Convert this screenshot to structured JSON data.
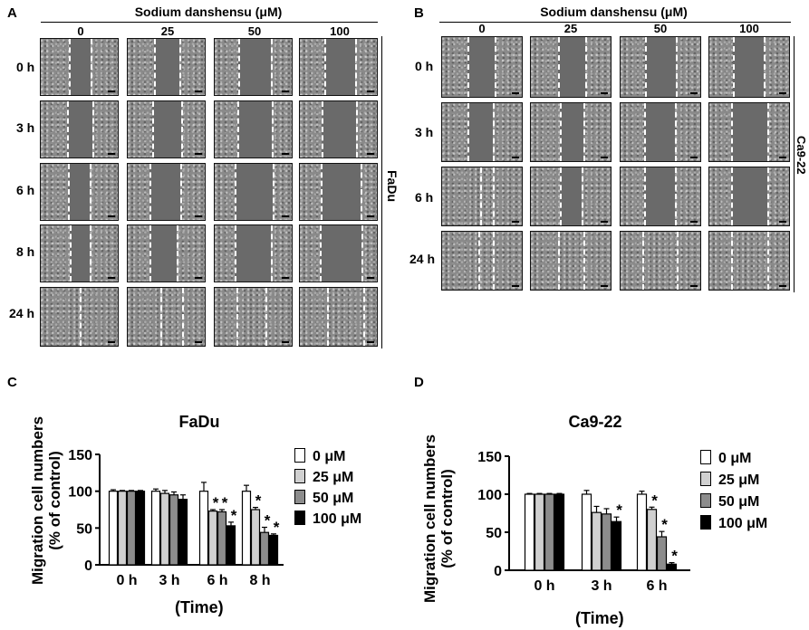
{
  "panels": {
    "A": "A",
    "B": "B",
    "C": "C",
    "D": "D"
  },
  "scratch": {
    "header": "Sodium danshensu (μM)",
    "concentrations": [
      "0",
      "25",
      "50",
      "100"
    ],
    "A": {
      "cell_line": "FaDu",
      "times": [
        "0 h",
        "3 h",
        "6 h",
        "8 h",
        "24 h"
      ]
    },
    "B": {
      "cell_line": "Ca9-22",
      "times": [
        "0 h",
        "3 h",
        "6 h",
        "24 h"
      ]
    }
  },
  "colors": {
    "c0": "#ffffff",
    "c25": "#d0d0d0",
    "c50": "#8c8c8c",
    "c100": "#000000"
  },
  "chart_data": [
    {
      "type": "bar",
      "title": "FaDu",
      "ylabel": "Migration cell numbers\n(% of control)",
      "xlabel": "(Time)",
      "categories": [
        "0 h",
        "3 h",
        "6 h",
        "8 h"
      ],
      "ylim": [
        0,
        150
      ],
      "yticks": [
        "0",
        "50",
        "100",
        "150"
      ],
      "series": [
        {
          "name": "0 μM",
          "values": [
            100,
            100,
            100,
            100
          ],
          "errors": [
            2,
            3,
            12,
            8
          ]
        },
        {
          "name": "25 μM",
          "values": [
            100,
            97,
            73,
            75
          ],
          "errors": [
            1,
            4,
            2,
            3
          ]
        },
        {
          "name": "50 μM",
          "values": [
            100,
            95,
            72,
            44
          ],
          "errors": [
            1,
            4,
            3,
            7
          ]
        },
        {
          "name": "100 μM",
          "values": [
            100,
            89,
            53,
            40
          ],
          "errors": [
            1,
            6,
            5,
            2
          ]
        }
      ],
      "significance": [
        {
          "category": 2,
          "series": 1,
          "label": "*"
        },
        {
          "category": 2,
          "series": 2,
          "label": "*"
        },
        {
          "category": 2,
          "series": 3,
          "label": "*"
        },
        {
          "category": 3,
          "series": 1,
          "label": "*"
        },
        {
          "category": 3,
          "series": 2,
          "label": "*"
        },
        {
          "category": 3,
          "series": 3,
          "label": "*"
        }
      ],
      "legend": "right"
    },
    {
      "type": "bar",
      "title": "Ca9-22",
      "ylabel": "Migration cell numbers\n(% of control)",
      "xlabel": "(Time)",
      "categories": [
        "0 h",
        "3 h",
        "6 h"
      ],
      "ylim": [
        0,
        150
      ],
      "yticks": [
        "0",
        "50",
        "100",
        "150"
      ],
      "series": [
        {
          "name": "0 μM",
          "values": [
            100,
            100,
            100
          ],
          "errors": [
            1,
            5,
            4
          ]
        },
        {
          "name": "25 μM",
          "values": [
            100,
            76,
            80
          ],
          "errors": [
            1,
            8,
            3
          ]
        },
        {
          "name": "50 μM",
          "values": [
            100,
            74,
            44
          ],
          "errors": [
            1,
            7,
            7
          ]
        },
        {
          "name": "100 μM",
          "values": [
            100,
            64,
            8
          ],
          "errors": [
            1,
            6,
            2
          ]
        }
      ],
      "significance": [
        {
          "category": 1,
          "series": 3,
          "label": "*"
        },
        {
          "category": 2,
          "series": 1,
          "label": "*"
        },
        {
          "category": 2,
          "series": 2,
          "label": "*"
        },
        {
          "category": 2,
          "series": 3,
          "label": "*"
        }
      ],
      "legend": "right"
    }
  ]
}
